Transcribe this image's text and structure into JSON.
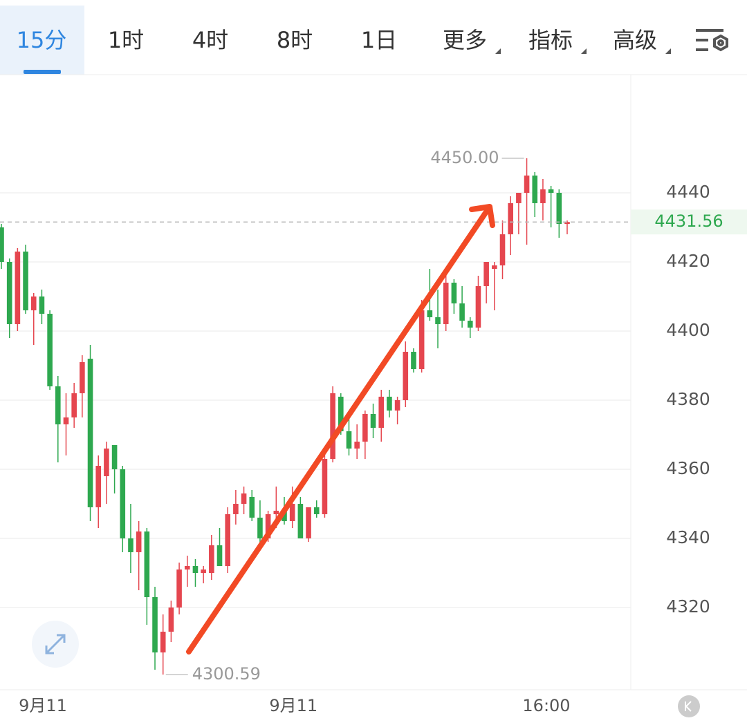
{
  "tabs": [
    "15分",
    "1时",
    "4时",
    "8时",
    "1日",
    "更多",
    "指标",
    "高级"
  ],
  "chart_data": {
    "type": "candlestick",
    "categories": [
      "9月11",
      null,
      null,
      null,
      null,
      null,
      null,
      null,
      null,
      null,
      null,
      null,
      null,
      null,
      null,
      null,
      null,
      null,
      null,
      null,
      null,
      null,
      null,
      null,
      null,
      null,
      null,
      null,
      null,
      null,
      null,
      "9月11",
      null,
      null,
      null,
      null,
      null,
      null,
      null,
      null,
      null,
      null,
      null,
      null,
      null,
      null,
      null,
      null,
      null,
      null,
      null,
      null,
      null,
      null,
      null,
      null,
      null,
      null,
      null,
      null,
      null,
      null,
      null,
      null,
      null,
      null,
      null,
      null,
      null,
      null,
      "16:00"
    ],
    "open": [
      4430,
      4420,
      4402,
      4423,
      4406,
      4410,
      4405,
      4384,
      4373,
      4375,
      4382,
      4392,
      4349,
      4358,
      4367,
      4360,
      4340,
      4336,
      4342,
      4323,
      4307,
      4313,
      4320,
      4331,
      4332,
      4330,
      4330,
      4338,
      4332,
      4347,
      4350,
      4352,
      4346,
      4340,
      4347,
      4348,
      4345,
      4350,
      4340,
      4349,
      4347,
      4363,
      4381,
      4371,
      4366,
      4368,
      4376,
      4372,
      4381,
      4377,
      4380,
      4394,
      4389,
      4406,
      4404,
      4402,
      4414,
      4408,
      4403,
      4401,
      4413,
      4418,
      4419,
      4428,
      4437,
      4440,
      4445,
      4437,
      4441,
      4440,
      4431
    ],
    "high": [
      4431,
      4421,
      4424,
      4425,
      4411,
      4412,
      4406,
      4387,
      4382,
      4385,
      4393,
      4396,
      4364,
      4368,
      4367,
      4361,
      4350,
      4345,
      4343,
      4326,
      4318,
      4322,
      4333,
      4335,
      4334,
      4332,
      4341,
      4343,
      4349,
      4354,
      4355,
      4354,
      4351,
      4348,
      4355,
      4352,
      4355,
      4352,
      4349,
      4351,
      4366,
      4384,
      4382,
      4376,
      4373,
      4377,
      4379,
      4383,
      4383,
      4381,
      4397,
      4395,
      4409,
      4418,
      4412,
      4417,
      4415,
      4413,
      4404,
      4416,
      4420,
      4420,
      4432,
      4439,
      4440,
      4450,
      4446,
      4444,
      4442,
      4441,
      4432
    ],
    "low": [
      4418,
      4398,
      4400,
      4405,
      4396,
      4402,
      4383,
      4362,
      4364,
      4372,
      4375,
      4345,
      4343,
      4350,
      4353,
      4336,
      4330,
      4325,
      4315,
      4302,
      4300.59,
      4310,
      4318,
      4326,
      4326,
      4327,
      4328,
      4333,
      4330,
      4344,
      4347,
      4345,
      4338,
      4339,
      4343,
      4344,
      4343,
      4340,
      4339,
      4346,
      4346,
      4362,
      4370,
      4364,
      4363,
      4363,
      4369,
      4368,
      4375,
      4373,
      4378,
      4388,
      4388,
      4403,
      4395,
      4400,
      4405,
      4401,
      4398,
      4400,
      4408,
      4406,
      4415,
      4422,
      4428,
      4425,
      4433,
      4432,
      4430,
      4427,
      4428
    ],
    "close": [
      4420,
      4402,
      4423,
      4406,
      4410,
      4405,
      4384,
      4373,
      4375,
      4382,
      4391,
      4349,
      4361,
      4366,
      4360,
      4340,
      4336,
      4342,
      4323,
      4307,
      4313,
      4320,
      4331,
      4332,
      4330,
      4331,
      4338,
      4332,
      4347,
      4350,
      4353,
      4346,
      4340,
      4347,
      4348,
      4345,
      4350,
      4340,
      4349,
      4347,
      4363,
      4382,
      4371,
      4366,
      4368,
      4376,
      4372,
      4381,
      4377,
      4380,
      4394,
      4389,
      4406,
      4404,
      4402,
      4414,
      4408,
      4403,
      4401,
      4413,
      4420,
      4419,
      4428,
      4437,
      4440,
      4445,
      4437,
      4441,
      4440,
      4431,
      4431.56
    ],
    "up_color": "#e5464f",
    "down_color": "#2ea84f",
    "ylim": [
      4296.2,
      4473.8
    ],
    "yticks": [
      4320,
      4340,
      4360,
      4380,
      4400,
      4420,
      4440
    ],
    "grid": true,
    "last_price": 4431.56,
    "max_label": {
      "value": 4450,
      "label": "4450.00"
    },
    "min_label": 4300.59
  }
}
